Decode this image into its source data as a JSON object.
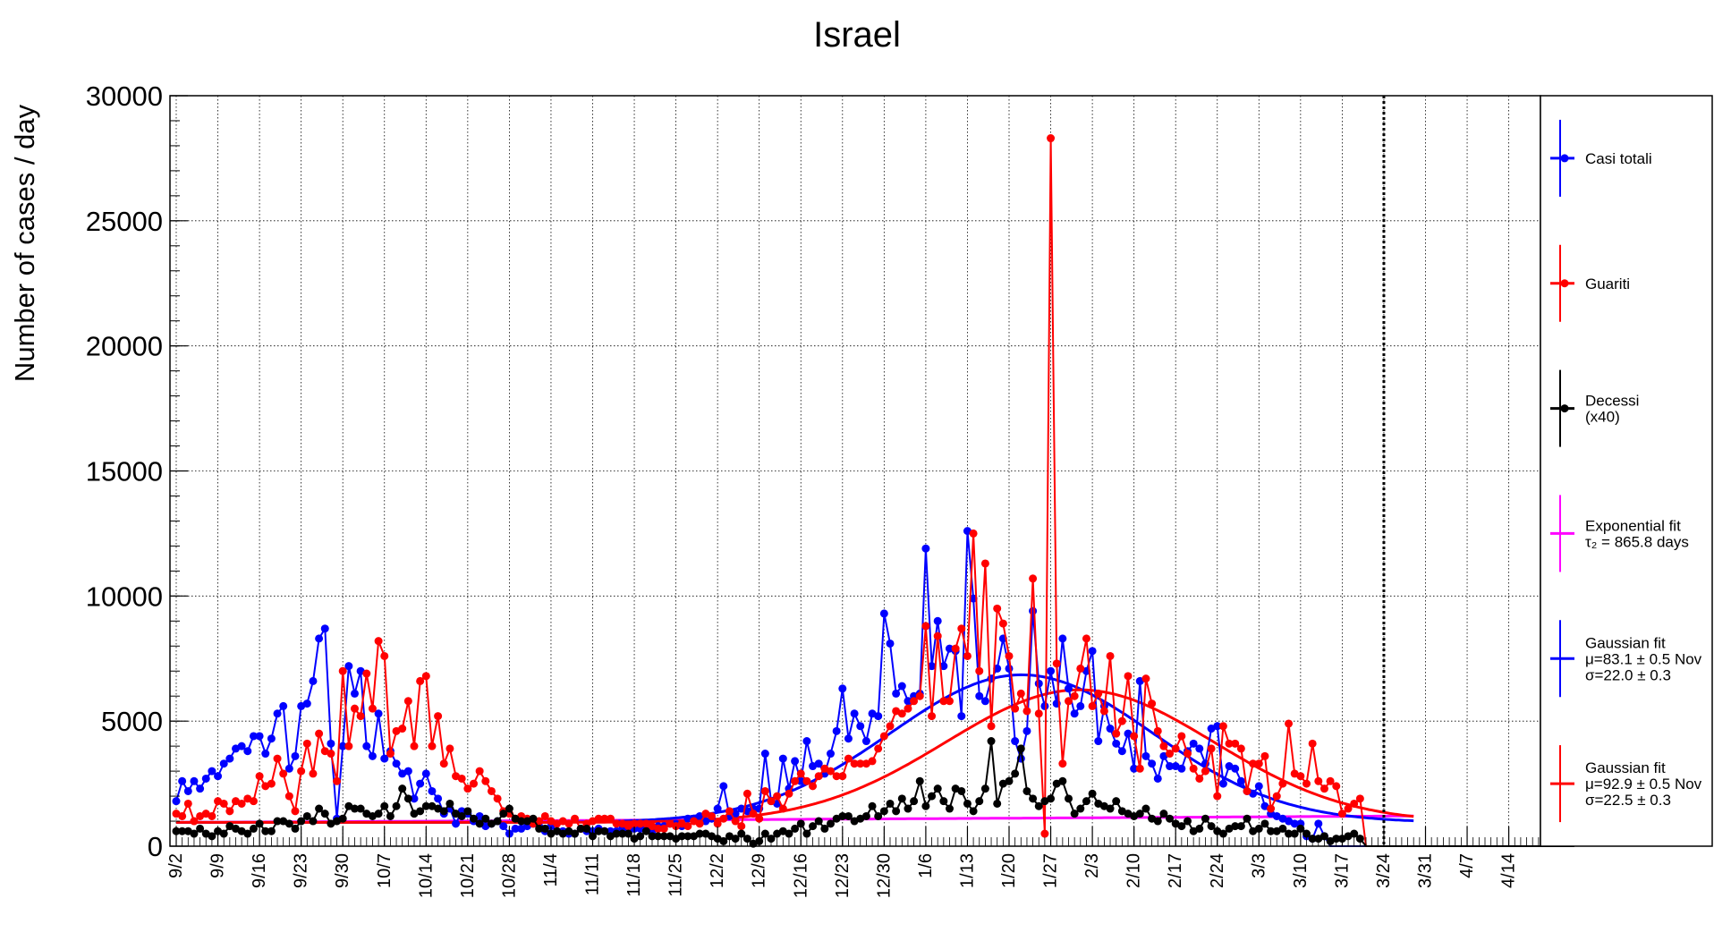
{
  "chart_data": {
    "type": "line",
    "title": "Israel",
    "xlabel": "",
    "ylabel": "Number of cases / day",
    "ylim": [
      0,
      30000
    ],
    "y_ticks": [
      "0",
      "5000",
      "10000",
      "15000",
      "20000",
      "25000",
      "30000"
    ],
    "x_tick_labels": [
      "9/2",
      "9/9",
      "9/16",
      "9/23",
      "9/30",
      "10/7",
      "10/14",
      "10/21",
      "10/28",
      "11/4",
      "11/11",
      "11/18",
      "11/25",
      "12/2",
      "12/9",
      "12/16",
      "12/23",
      "12/30",
      "1/6",
      "1/13",
      "1/20",
      "1/27",
      "2/3",
      "2/10",
      "2/17",
      "2/24",
      "3/3",
      "3/10",
      "3/17",
      "3/24",
      "3/31",
      "4/7",
      "4/14"
    ],
    "x_start_date": "2020-09-01",
    "x_range_days": [
      0,
      225
    ],
    "grid": true,
    "vertical_marker_date": "3/24",
    "legend_position": "right",
    "series": [
      {
        "name": "Casi totali",
        "color": "#0000ff",
        "kind": "points",
        "values": [
          1800,
          2600,
          2200,
          2600,
          2300,
          2700,
          3000,
          2800,
          3300,
          3500,
          3900,
          4000,
          3800,
          4400,
          4400,
          3700,
          4300,
          5300,
          5600,
          3100,
          3600,
          5600,
          5700,
          6600,
          8300,
          8700,
          4100,
          1100,
          4000,
          7200,
          6100,
          7000,
          4000,
          3600,
          5300,
          3500,
          3800,
          3300,
          2900,
          3000,
          1900,
          2500,
          2900,
          2200,
          1900,
          1300,
          1500,
          900,
          1400,
          1300,
          1000,
          1200,
          800,
          900,
          1000,
          800,
          500,
          700,
          700,
          800,
          900,
          800,
          600,
          800,
          600,
          600,
          500,
          500,
          700,
          600,
          600,
          700,
          600,
          600,
          600,
          700,
          600,
          700,
          700,
          700,
          600,
          800,
          800,
          900,
          900,
          800,
          1100,
          1100,
          1200,
          1000,
          1100,
          1500,
          2400,
          1200,
          1300,
          1500,
          1400,
          1500,
          1500,
          3700,
          1800,
          1700,
          3500,
          2300,
          3400,
          2600,
          4200,
          3200,
          3300,
          2900,
          3700,
          4600,
          6300,
          4300,
          5300,
          4800,
          4200,
          5300,
          5200,
          9300,
          8100,
          6100,
          6400,
          5800,
          6000,
          6100,
          11900,
          7200,
          9000,
          7200,
          7900,
          7800,
          5200,
          12600,
          9900,
          6000,
          5800,
          6700,
          7100,
          8300,
          7100,
          4200,
          3500,
          4600,
          9400,
          6500,
          5600,
          7000,
          5700,
          8300,
          6300,
          5300,
          5600,
          7000,
          7800,
          4200,
          5600,
          4700,
          4100,
          3800,
          4500,
          3100,
          6600,
          3600,
          3300,
          2700,
          3600,
          3200,
          3200,
          3100,
          3800,
          4100,
          3900,
          3300,
          4700,
          4800,
          2500,
          3200,
          3100,
          2600,
          2200,
          2100,
          2400,
          1600,
          1300,
          1200,
          1100,
          1000,
          900,
          900,
          400,
          300,
          900,
          400,
          0,
          0,
          0,
          0,
          0,
          0,
          0,
          0,
          0,
          0,
          0,
          0,
          0,
          0,
          0,
          0,
          0,
          0,
          0,
          0,
          0,
          0,
          0,
          0,
          0,
          0,
          0,
          0,
          0,
          0,
          0,
          0,
          0,
          0,
          0,
          0
        ]
      },
      {
        "name": "Guariti",
        "color": "#ff0000",
        "kind": "points",
        "values": [
          1300,
          1200,
          1700,
          1000,
          1200,
          1300,
          1200,
          1800,
          1700,
          1400,
          1800,
          1700,
          1900,
          1800,
          2800,
          2400,
          2500,
          3500,
          2900,
          2000,
          1400,
          3000,
          4100,
          2900,
          4500,
          3800,
          3700,
          2600,
          7000,
          4000,
          5500,
          5200,
          6900,
          5500,
          8200,
          7600,
          3700,
          4600,
          4700,
          5800,
          4000,
          6600,
          6800,
          4000,
          5200,
          3300,
          3900,
          2800,
          2700,
          2300,
          2500,
          3000,
          2600,
          2200,
          1900,
          1400,
          1300,
          1100,
          1200,
          1100,
          900,
          1000,
          1200,
          1000,
          900,
          1000,
          900,
          1100,
          700,
          900,
          1000,
          1100,
          1100,
          1100,
          900,
          900,
          800,
          900,
          900,
          900,
          800,
          700,
          700,
          900,
          800,
          900,
          800,
          1000,
          900,
          1300,
          1200,
          900,
          1100,
          1400,
          1000,
          800,
          2100,
          1300,
          1100,
          2200,
          1800,
          2000,
          1500,
          2100,
          2600,
          2900,
          2600,
          2400,
          2800,
          3100,
          3000,
          2800,
          2800,
          3500,
          3300,
          3300,
          3300,
          3400,
          3900,
          4400,
          4800,
          5400,
          5300,
          5500,
          5800,
          6000,
          8800,
          5200,
          8400,
          5800,
          5800,
          7900,
          8700,
          7600,
          12500,
          7000,
          11300,
          4800,
          9500,
          8900,
          7600,
          5500,
          6100,
          5400,
          10700,
          5300,
          500,
          28300,
          7300,
          3300,
          5800,
          6000,
          7100,
          8300,
          5600,
          6100,
          5400,
          7600,
          4500,
          5000,
          6800,
          4400,
          3100,
          6700,
          5700,
          4600,
          4000,
          3700,
          3900,
          4400,
          3700,
          3100,
          2700,
          3000,
          3900,
          2000,
          4800,
          4100,
          4100,
          3900,
          2200,
          3300,
          3300,
          3600,
          1500,
          2000,
          2500,
          4900,
          2900,
          2800,
          2500,
          4100,
          2600,
          2300,
          2600,
          2400,
          1300,
          1500,
          1700,
          1900,
          0,
          0,
          0,
          0,
          0,
          0,
          0,
          0,
          0,
          0,
          0,
          0,
          0,
          0,
          0,
          0,
          0,
          0,
          0,
          0,
          0,
          0,
          0,
          0,
          0,
          0,
          0,
          0,
          0,
          0,
          0,
          0,
          0,
          0,
          0,
          0
        ]
      },
      {
        "name": "Decessi (x40)",
        "color": "#000000",
        "kind": "points",
        "values": [
          600,
          600,
          600,
          500,
          700,
          500,
          400,
          600,
          500,
          800,
          700,
          600,
          500,
          700,
          900,
          600,
          600,
          1000,
          1000,
          900,
          700,
          1000,
          1200,
          1000,
          1500,
          1300,
          900,
          1000,
          1100,
          1600,
          1500,
          1500,
          1300,
          1200,
          1300,
          1600,
          1200,
          1600,
          2300,
          1900,
          1300,
          1400,
          1600,
          1600,
          1500,
          1400,
          1700,
          1300,
          1200,
          1400,
          1100,
          900,
          1100,
          900,
          1000,
          1300,
          1500,
          1100,
          1000,
          1000,
          1100,
          700,
          700,
          500,
          600,
          500,
          600,
          500,
          700,
          700,
          400,
          600,
          600,
          400,
          500,
          500,
          500,
          300,
          400,
          600,
          400,
          400,
          400,
          400,
          300,
          400,
          400,
          400,
          500,
          500,
          400,
          300,
          200,
          400,
          300,
          500,
          300,
          100,
          200,
          500,
          300,
          500,
          600,
          500,
          700,
          900,
          500,
          800,
          1000,
          700,
          900,
          1100,
          1200,
          1200,
          1000,
          1100,
          1200,
          1600,
          1200,
          1400,
          1700,
          1400,
          1900,
          1500,
          1800,
          2600,
          1600,
          2000,
          2300,
          1800,
          1500,
          2300,
          2200,
          1700,
          1400,
          1800,
          2300,
          4200,
          1700,
          2500,
          2600,
          2900,
          3900,
          2200,
          1900,
          1600,
          1800,
          1900,
          2500,
          2600,
          1900,
          1300,
          1500,
          1800,
          2100,
          1700,
          1600,
          1500,
          1800,
          1400,
          1300,
          1200,
          1300,
          1500,
          1100,
          1000,
          1300,
          1100,
          900,
          800,
          1000,
          600,
          700,
          1100,
          800,
          600,
          500,
          700,
          800,
          800,
          1100,
          600,
          700,
          900,
          600,
          600,
          700,
          500,
          500,
          700,
          500,
          300,
          300,
          400,
          200,
          300,
          300,
          400,
          500,
          300,
          0,
          0,
          0,
          0,
          0,
          0,
          0,
          0,
          0,
          0,
          0,
          0,
          0,
          0,
          0,
          0,
          0,
          0,
          0,
          0,
          0,
          0,
          0,
          0,
          0,
          0,
          0,
          0,
          0,
          0,
          0,
          0,
          0,
          0,
          0,
          0
        ]
      },
      {
        "name": "Exponential fit",
        "label_line2": "τ₂ = 865.8 days",
        "color": "#ff00ff",
        "kind": "exponential",
        "A": 950,
        "tau_days": 865.8
      },
      {
        "name": "Gaussian fit",
        "label_line2": "μ=83.1 ± 0.5 Nov",
        "label_line3": "σ=22.0 ± 0.3",
        "color": "#0000ff",
        "kind": "gaussian",
        "amplitude": 5900,
        "mu_days": 143.1,
        "sigma_days": 22.0,
        "baseline": 950
      },
      {
        "name": "Gaussian fit",
        "label_line2": "μ=92.9 ± 0.5 Nov",
        "label_line3": "σ=22.5 ± 0.3",
        "color": "#ff0000",
        "kind": "gaussian",
        "amplitude": 5300,
        "mu_days": 152.9,
        "sigma_days": 22.5,
        "baseline": 950
      }
    ]
  },
  "legend": {
    "entries": [
      {
        "line1": "Casi totali",
        "line2": "",
        "line3": "",
        "color": "#0000ff",
        "marker": true
      },
      {
        "line1": "Guariti",
        "line2": "",
        "line3": "",
        "color": "#ff0000",
        "marker": true
      },
      {
        "line1": "Decessi",
        "line2": "(x40)",
        "line3": "",
        "color": "#000000",
        "marker": true
      },
      {
        "line1": "Exponential fit",
        "line2": "τ₂ = 865.8 days",
        "line3": "",
        "color": "#ff00ff",
        "marker": false
      },
      {
        "line1": "Gaussian fit",
        "line2": "μ=83.1 ± 0.5 Nov",
        "line3": "σ=22.0 ± 0.3",
        "color": "#0000ff",
        "marker": false
      },
      {
        "line1": "Gaussian fit",
        "line2": "μ=92.9 ± 0.5 Nov",
        "line3": "σ=22.5 ± 0.3",
        "color": "#ff0000",
        "marker": false
      }
    ]
  }
}
